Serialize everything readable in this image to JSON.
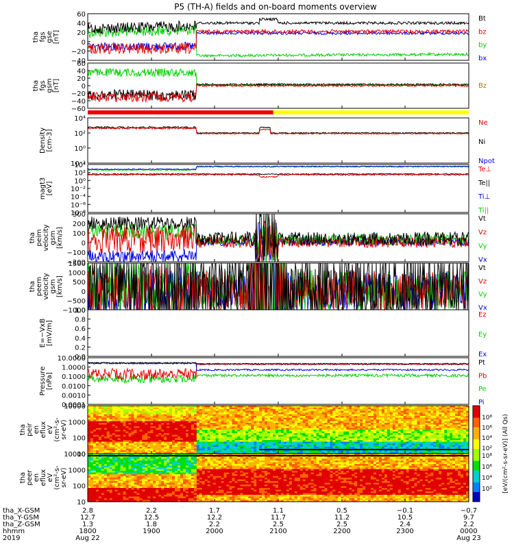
{
  "title": "P5 (TH-A) fields and on-board moments overview",
  "colors": {
    "black": "#000000",
    "red": "#e00000",
    "green": "#00d000",
    "blue": "#0000e0",
    "yellow": "#f0f000",
    "gold": "#a08000"
  },
  "chart_data": [
    {
      "type": "line",
      "id": "fgs-gse",
      "ylabel": [
        "tha",
        "fgs",
        "gse",
        "[nT]"
      ],
      "ylim": [
        -40,
        60
      ],
      "yticks": [
        "60",
        "40",
        "20",
        "0",
        "−20",
        "−40"
      ],
      "legend": [
        {
          "name": "Bt",
          "color": "black"
        },
        {
          "name": "bz",
          "color": "red"
        },
        {
          "name": "by",
          "color": "green"
        },
        {
          "name": "bx",
          "color": "blue"
        }
      ]
    },
    {
      "type": "line",
      "id": "fgs-gsm",
      "ylabel": [
        "tha",
        "fgs",
        "gsm",
        "[nT]"
      ],
      "ylim": [
        -60,
        60
      ],
      "yticks": [
        "60",
        "40",
        "20",
        "0",
        "−20",
        "−40",
        "−60"
      ],
      "legend": [
        {
          "name": "Bz",
          "color": "gold"
        }
      ]
    },
    {
      "type": "line",
      "id": "density",
      "scale": "log",
      "ylabel": [
        "Density",
        "[cm-3]"
      ],
      "yticks": [
        "10⁴",
        "10²",
        "10⁰",
        "10⁻²"
      ],
      "legend": [
        {
          "name": "Ne",
          "color": "red"
        },
        {
          "name": "Ni",
          "color": "black"
        },
        {
          "name": "Npot",
          "color": "blue"
        }
      ]
    },
    {
      "type": "line",
      "id": "temp",
      "scale": "log",
      "ylabel": [
        "magt3",
        "[eV]"
      ],
      "yticks": [
        "10⁴",
        "10²",
        "10⁰",
        "10⁻²",
        "10⁻⁴",
        "10⁻⁶",
        "10⁻⁸"
      ],
      "legend": [
        {
          "name": "Te⊥",
          "color": "red"
        },
        {
          "name": "Te||",
          "color": "black"
        },
        {
          "name": "Ti⊥",
          "color": "blue"
        },
        {
          "name": "Ti||",
          "color": "green"
        }
      ]
    },
    {
      "type": "line",
      "id": "peim-vel",
      "ylabel": [
        "tha",
        "peim",
        "velocity",
        "gsm",
        "[km/s]"
      ],
      "ylim": [
        -200,
        300
      ],
      "yticks": [
        "300",
        "200",
        "100",
        "0",
        "−100",
        "−200"
      ],
      "legend": [
        {
          "name": "Vt",
          "color": "black"
        },
        {
          "name": "Vz",
          "color": "red"
        },
        {
          "name": "Vy",
          "color": "green"
        },
        {
          "name": "Vx",
          "color": "blue"
        }
      ]
    },
    {
      "type": "line",
      "id": "peem-vel",
      "ylabel": [
        "tha",
        "peem",
        "velocity",
        "gsm",
        "[km/s]"
      ],
      "ylim": [
        -1000,
        1500
      ],
      "yticks": [
        "1500",
        "1000",
        "500",
        "0",
        "−500",
        "−1000"
      ],
      "legend": [
        {
          "name": "Vt",
          "color": "black"
        },
        {
          "name": "Vz",
          "color": "red"
        },
        {
          "name": "Vy",
          "color": "green"
        },
        {
          "name": "Vx",
          "color": "blue"
        }
      ]
    },
    {
      "type": "line",
      "id": "efield",
      "ylabel": [
        "E=−VxB",
        "[mV/m]"
      ],
      "ylim": [
        0,
        1
      ],
      "yticks": [
        "1.0",
        "0.8",
        "0.6",
        "0.4",
        "0.2",
        "0.0"
      ],
      "legend": [
        {
          "name": "Ez",
          "color": "red"
        },
        {
          "name": "Ey",
          "color": "green"
        },
        {
          "name": "Ex",
          "color": "blue"
        }
      ]
    },
    {
      "type": "line",
      "id": "pressure",
      "scale": "log",
      "ylabel": [
        "Pressure",
        "[nPa]"
      ],
      "yticks": [
        "10.0000",
        "1.0000",
        "0.1000",
        "0.0100",
        "0.0010",
        "0.0001"
      ],
      "legend": [
        {
          "name": "Pt",
          "color": "black"
        },
        {
          "name": "Pb",
          "color": "red"
        },
        {
          "name": "Pe",
          "color": "green"
        },
        {
          "name": "Pi",
          "color": "blue"
        }
      ]
    },
    {
      "type": "heatmap",
      "id": "peir",
      "ylabel": [
        "tha",
        "peir",
        "en",
        "eflux",
        "eV",
        "(cm²-s-",
        "sr-eV)"
      ],
      "yticks": [
        "10000",
        "1000",
        "100",
        "10"
      ]
    },
    {
      "type": "heatmap",
      "id": "peer",
      "ylabel": [
        "tha",
        "peer",
        "en",
        "eflux",
        "eV",
        "(cm²-s-",
        "sr-eV)"
      ],
      "yticks": [
        "10000",
        "1000",
        "100",
        "10"
      ]
    }
  ],
  "colorbar": {
    "label": "[eV/(cm²-s-sr-eV)] (All Qs)",
    "ticks_top": [
      "10⁸",
      "10⁶",
      "10⁴",
      "10²"
    ],
    "ticks_bottom": [
      "10⁸",
      "10⁶",
      "10⁴",
      "10²"
    ]
  },
  "xaxis": {
    "rows": [
      {
        "label": "tha_X-GSM",
        "values": [
          "2.8",
          "2.2",
          "1.7",
          "1.1",
          "0.5",
          "−0.1",
          "−0.7"
        ]
      },
      {
        "label": "tha_Y-GSM",
        "values": [
          "12.7",
          "12.5",
          "12.2",
          "11.7",
          "11.2",
          "10.5",
          "9.7"
        ]
      },
      {
        "label": "tha_Z-GSM",
        "values": [
          "1.3",
          "1.8",
          "2.2",
          "2.5",
          "2.5",
          "2.4",
          "2.2"
        ]
      },
      {
        "label": "hhmm",
        "values": [
          "1800",
          "1900",
          "2000",
          "2100",
          "2200",
          "2300",
          "0000"
        ]
      },
      {
        "label": "2019",
        "values": [
          "Aug 22",
          "",
          "",
          "",
          "",
          "",
          "Aug 23"
        ]
      }
    ]
  }
}
